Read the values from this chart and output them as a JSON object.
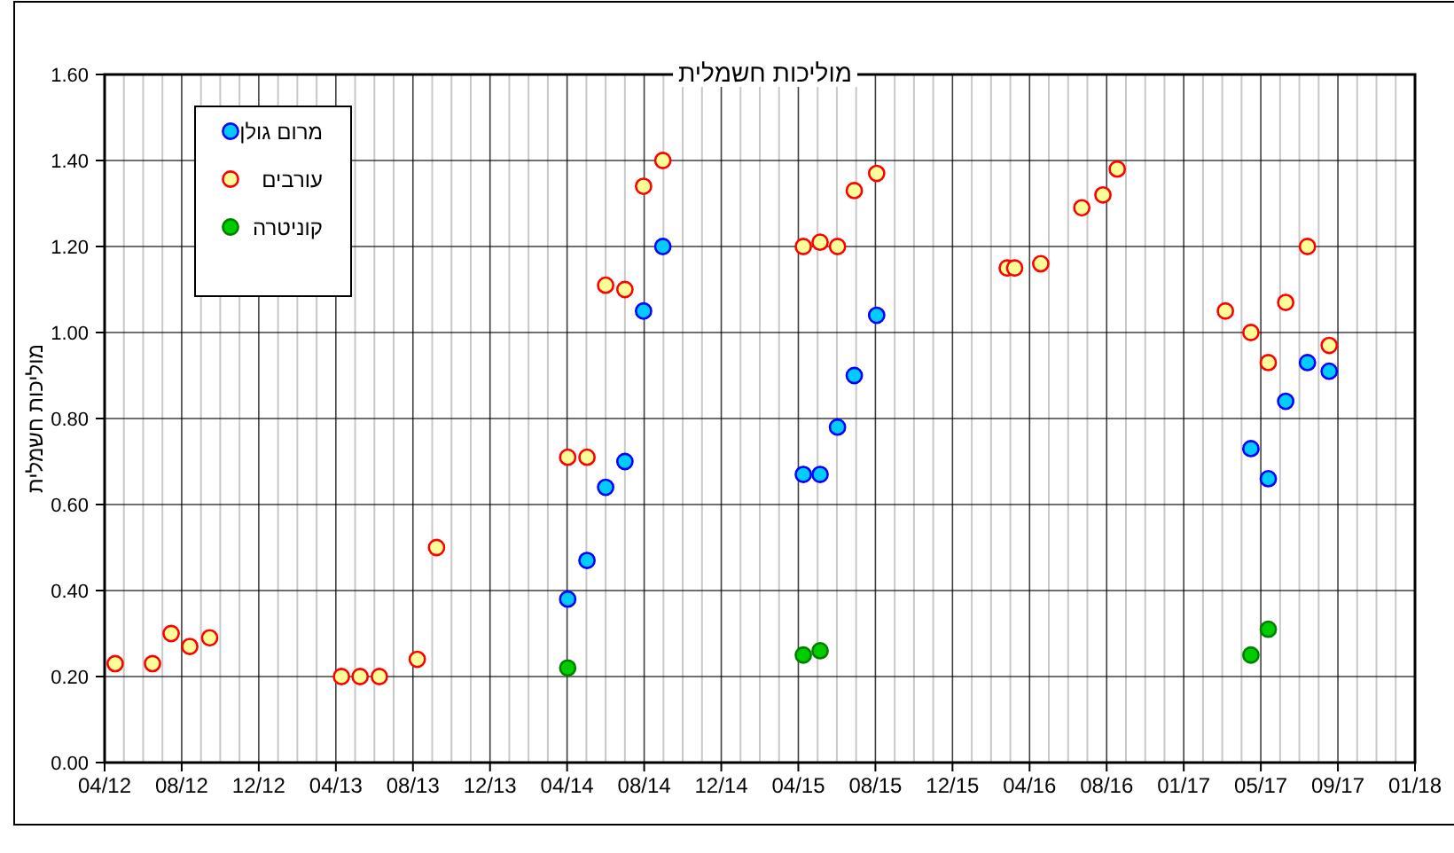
{
  "chart_data": {
    "type": "scatter",
    "title": "מוליכות חשמלית",
    "ylabel": "מוליכות חשמלית",
    "xlim": [
      "2012-04-01",
      "2018-01-08"
    ],
    "ylim": [
      0,
      1.6
    ],
    "xticks": [
      {
        "value": "2012-04-01",
        "label": "04/12"
      },
      {
        "value": "2012-08-03",
        "label": "08/12"
      },
      {
        "value": "2012-12-05",
        "label": "12/12"
      },
      {
        "value": "2013-04-08",
        "label": "04/13"
      },
      {
        "value": "2013-08-10",
        "label": "08/13"
      },
      {
        "value": "2013-12-12",
        "label": "12/13"
      },
      {
        "value": "2014-04-15",
        "label": "04/14"
      },
      {
        "value": "2014-08-17",
        "label": "08/14"
      },
      {
        "value": "2014-12-19",
        "label": "12/14"
      },
      {
        "value": "2015-04-22",
        "label": "04/15"
      },
      {
        "value": "2015-08-24",
        "label": "08/15"
      },
      {
        "value": "2015-12-26",
        "label": "12/15"
      },
      {
        "value": "2016-04-28",
        "label": "04/16"
      },
      {
        "value": "2016-08-30",
        "label": "08/16"
      },
      {
        "value": "2017-01-01",
        "label": "01/17"
      },
      {
        "value": "2017-05-05",
        "label": "05/17"
      },
      {
        "value": "2017-09-06",
        "label": "09/17"
      },
      {
        "value": "2018-01-08",
        "label": "01/18"
      }
    ],
    "yticks": [
      {
        "value": 0,
        "label": "0.00"
      },
      {
        "value": 0.2,
        "label": "0.20"
      },
      {
        "value": 0.4,
        "label": "0.40"
      },
      {
        "value": 0.6,
        "label": "0.60"
      },
      {
        "value": 0.8,
        "label": "0.80"
      },
      {
        "value": 1.0,
        "label": "1.00"
      },
      {
        "value": 1.2,
        "label": "1.20"
      },
      {
        "value": 1.4,
        "label": "1.40"
      },
      {
        "value": 1.6,
        "label": "1.60"
      }
    ],
    "grid": true,
    "legend": "top left",
    "marker": "circle",
    "series": [
      {
        "name": "מרום גולן",
        "color": "#00ccff",
        "x": [
          "2014-04-16",
          "2014-05-17",
          "2014-06-16",
          "2014-07-17",
          "2014-08-16",
          "2014-09-16",
          "2015-04-30",
          "2015-05-27",
          "2015-06-24",
          "2015-07-21",
          "2015-08-26",
          "2017-04-19",
          "2017-05-17",
          "2017-06-14",
          "2017-07-19",
          "2017-08-23"
        ],
        "values": [
          0.38,
          0.47,
          0.64,
          0.7,
          1.05,
          1.2,
          0.67,
          0.67,
          0.78,
          0.9,
          1.04,
          0.73,
          0.66,
          0.84,
          0.93,
          0.91
        ]
      },
      {
        "name": "עורבים",
        "color": "#ffff99",
        "x": [
          "2012-04-18",
          "2012-06-17",
          "2012-07-17",
          "2012-08-16",
          "2012-09-17",
          "2013-04-17",
          "2013-05-17",
          "2013-06-17",
          "2013-08-17",
          "2013-09-17",
          "2014-04-16",
          "2014-05-17",
          "2014-06-16",
          "2014-07-17",
          "2014-08-16",
          "2014-09-16",
          "2015-04-30",
          "2015-05-27",
          "2015-06-24",
          "2015-07-21",
          "2015-08-26",
          "2016-03-23",
          "2016-04-04",
          "2016-05-16",
          "2016-07-21",
          "2016-08-24",
          "2016-09-16",
          "2017-03-09",
          "2017-04-19",
          "2017-05-17",
          "2017-06-14",
          "2017-07-19",
          "2017-08-23"
        ],
        "values": [
          0.23,
          0.23,
          0.3,
          0.27,
          0.29,
          0.2,
          0.2,
          0.2,
          0.24,
          0.5,
          0.71,
          0.71,
          1.11,
          1.1,
          1.34,
          1.4,
          1.2,
          1.21,
          1.2,
          1.33,
          1.37,
          1.15,
          1.15,
          1.16,
          1.29,
          1.32,
          1.38,
          1.05,
          1.0,
          0.93,
          1.07,
          1.2,
          0.97
        ]
      },
      {
        "name": "קוניטרה",
        "color": "#00cc00",
        "x": [
          "2014-04-16",
          "2015-04-30",
          "2015-05-27",
          "2017-04-19",
          "2017-05-17"
        ],
        "values": [
          0.22,
          0.25,
          0.26,
          0.25,
          0.31
        ]
      }
    ]
  }
}
